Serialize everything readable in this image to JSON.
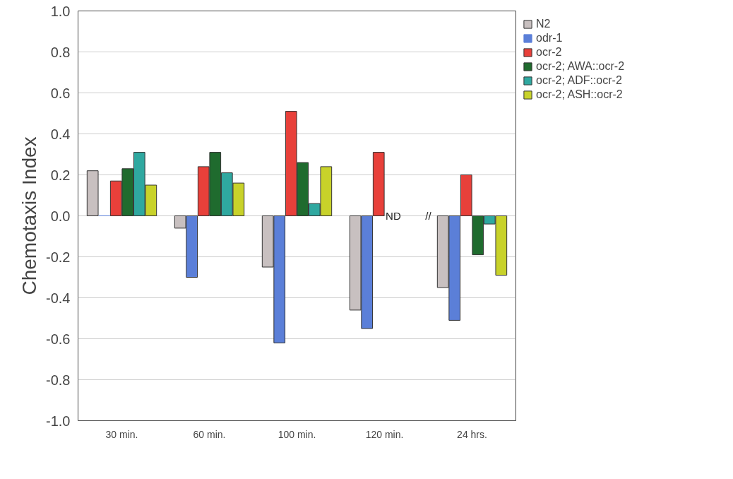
{
  "chart_data": {
    "type": "bar",
    "ylabel": "Chemotaxis Index",
    "categories": [
      "30 min.",
      "60 min.",
      "100 min.",
      "120 min.",
      "24 hrs."
    ],
    "series": [
      {
        "name": "N2",
        "color": "#c8c0c0",
        "values": [
          0.22,
          -0.06,
          -0.25,
          -0.46,
          -0.35
        ]
      },
      {
        "name": "odr-1",
        "color": "#5b7fd8",
        "values": [
          0.0,
          -0.3,
          -0.62,
          -0.55,
          -0.51
        ]
      },
      {
        "name": "ocr-2",
        "color": "#e8403a",
        "values": [
          0.17,
          0.24,
          0.51,
          0.31,
          0.2
        ]
      },
      {
        "name": "ocr-2; AWA::ocr-2",
        "color": "#1f6b2e",
        "values": [
          0.23,
          0.31,
          0.26,
          null,
          -0.19
        ]
      },
      {
        "name": "ocr-2; ADF::ocr-2",
        "color": "#2fa8a0",
        "values": [
          0.31,
          0.21,
          0.06,
          null,
          -0.04
        ]
      },
      {
        "name": "ocr-2; ASH::ocr-2",
        "color": "#c8d22a",
        "values": [
          0.15,
          0.16,
          0.24,
          null,
          -0.29
        ]
      }
    ],
    "ylim": [
      -1.0,
      1.0
    ],
    "yticks": [
      {
        "value": -1.0,
        "label": "-1.0"
      },
      {
        "value": -0.8,
        "label": "-0.8"
      },
      {
        "value": -0.6,
        "label": "-0.6"
      },
      {
        "value": -0.4,
        "label": "-0.4"
      },
      {
        "value": -0.2,
        "label": "-0.2"
      },
      {
        "value": 0,
        "label": "0.0"
      },
      {
        "value": 0.2,
        "label": "0.2"
      },
      {
        "value": 0.4,
        "label": "0.4"
      },
      {
        "value": 0.6,
        "label": "0.6"
      },
      {
        "value": 0.8,
        "label": "0.8"
      },
      {
        "value": 1.0,
        "label": "1.0"
      }
    ],
    "grid": "y",
    "legend": "top right",
    "annotations": [
      {
        "text": "ND",
        "x": "120 min.",
        "y": 0
      },
      "//"
    ]
  }
}
